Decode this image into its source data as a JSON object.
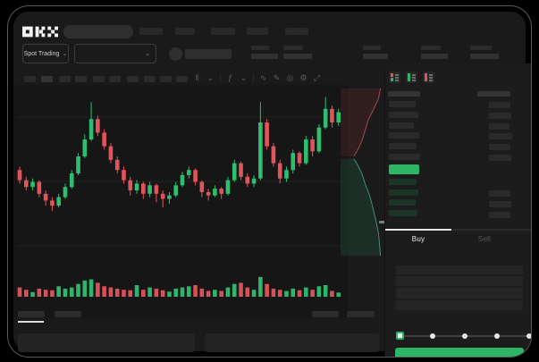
{
  "window": {
    "title": "OKX spot trading"
  },
  "colors": {
    "accent_green": "#2DB464",
    "candle_up": "#2FBD70",
    "candle_down": "#E0555C",
    "depth_ask_line": "#9c4a50",
    "depth_ask_fill": "rgba(176,62,68,0.16)",
    "depth_bid_line": "#3f8e7b",
    "depth_bid_fill": "rgba(46,140,96,0.18)",
    "grid_line": "#222222",
    "bid_row_tint": "#1d3527"
  },
  "topbar": {
    "logo": "OKX",
    "nav_placeholder_count": 5
  },
  "market_bar": {
    "market_selector": {
      "label": "Spot Trading",
      "chevron": "⌄"
    },
    "pair_selector": {
      "chevron": "⌄"
    },
    "stat_placeholder_count": 5
  },
  "chart_toolbar": {
    "interval_placeholder_count": 10,
    "icons": [
      {
        "name": "candle-type-icon",
        "glyph": "‖"
      },
      {
        "name": "chevron-down-icon",
        "glyph": "⌄"
      },
      {
        "name": "divider",
        "glyph": "|"
      },
      {
        "name": "indicators-icon",
        "glyph": "ƒ"
      },
      {
        "name": "chevron-down-icon",
        "glyph": "⌄"
      },
      {
        "name": "divider",
        "glyph": "|"
      },
      {
        "name": "line-tool-icon",
        "glyph": "∿"
      },
      {
        "name": "draw-tool-icon",
        "glyph": "✎"
      },
      {
        "name": "screenshot-icon",
        "glyph": "◎"
      },
      {
        "name": "settings-icon",
        "glyph": "⚙"
      },
      {
        "name": "fullscreen-icon",
        "glyph": "⤢"
      }
    ]
  },
  "chart_data": {
    "type": "candlestick",
    "title": "",
    "xlabel": "",
    "ylabel": "",
    "ylim": [
      0,
      100
    ],
    "axis_labels_visible": false,
    "candles_ohlc": [
      [
        52,
        54,
        44,
        46
      ],
      [
        46,
        48,
        40,
        42
      ],
      [
        42,
        47,
        40,
        45
      ],
      [
        45,
        46,
        36,
        38
      ],
      [
        38,
        40,
        31,
        34
      ],
      [
        34,
        36,
        28,
        31
      ],
      [
        31,
        38,
        30,
        36
      ],
      [
        36,
        44,
        35,
        42
      ],
      [
        42,
        52,
        41,
        50
      ],
      [
        50,
        62,
        49,
        60
      ],
      [
        60,
        73,
        59,
        70
      ],
      [
        70,
        92,
        69,
        82
      ],
      [
        82,
        84,
        72,
        74
      ],
      [
        74,
        76,
        64,
        66
      ],
      [
        66,
        68,
        56,
        58
      ],
      [
        58,
        60,
        50,
        52
      ],
      [
        52,
        54,
        44,
        46
      ],
      [
        46,
        48,
        37,
        40
      ],
      [
        40,
        46,
        38,
        44
      ],
      [
        44,
        45,
        35,
        38
      ],
      [
        38,
        45,
        36,
        43
      ],
      [
        43,
        44,
        33,
        38
      ],
      [
        38,
        40,
        30,
        35
      ],
      [
        35,
        39,
        32,
        37
      ],
      [
        37,
        45,
        36,
        43
      ],
      [
        43,
        51,
        42,
        49
      ],
      [
        49,
        54,
        47,
        52
      ],
      [
        52,
        53,
        43,
        45
      ],
      [
        45,
        46,
        36,
        39
      ],
      [
        39,
        41,
        34,
        37
      ],
      [
        37,
        43,
        36,
        41
      ],
      [
        41,
        42,
        35,
        38
      ],
      [
        38,
        48,
        37,
        46
      ],
      [
        46,
        58,
        45,
        56
      ],
      [
        56,
        57,
        46,
        48
      ],
      [
        48,
        50,
        42,
        44
      ],
      [
        44,
        49,
        42,
        47
      ],
      [
        47,
        92,
        46,
        80
      ],
      [
        80,
        82,
        64,
        66
      ],
      [
        66,
        68,
        54,
        56
      ],
      [
        56,
        58,
        44,
        47
      ],
      [
        47,
        54,
        45,
        52
      ],
      [
        52,
        64,
        50,
        62
      ],
      [
        62,
        63,
        54,
        56
      ],
      [
        56,
        72,
        55,
        70
      ],
      [
        70,
        72,
        60,
        63
      ],
      [
        63,
        79,
        62,
        77
      ],
      [
        77,
        95,
        76,
        88
      ],
      [
        88,
        90,
        77,
        80
      ],
      [
        80,
        88,
        78,
        86
      ]
    ],
    "volume": [
      40,
      30,
      20,
      35,
      30,
      28,
      45,
      35,
      40,
      55,
      70,
      75,
      60,
      45,
      40,
      35,
      30,
      28,
      50,
      30,
      40,
      35,
      28,
      22,
      35,
      40,
      45,
      50,
      35,
      25,
      30,
      25,
      40,
      55,
      60,
      40,
      30,
      85,
      55,
      35,
      30,
      25,
      35,
      28,
      40,
      30,
      45,
      50,
      25,
      18
    ],
    "depth": {
      "asks": [
        [
          0.02,
          0.95
        ],
        [
          0.08,
          0.9
        ],
        [
          0.14,
          0.78
        ],
        [
          0.2,
          0.66
        ],
        [
          0.26,
          0.58
        ],
        [
          0.31,
          0.52
        ],
        [
          0.35,
          0.45
        ],
        [
          0.38,
          0.38
        ],
        [
          0.405,
          0.32
        ]
      ],
      "bids": [
        [
          0.42,
          0.32
        ],
        [
          0.46,
          0.42
        ],
        [
          0.51,
          0.52
        ],
        [
          0.56,
          0.58
        ],
        [
          0.62,
          0.68
        ],
        [
          0.68,
          0.75
        ],
        [
          0.73,
          0.8
        ],
        [
          0.79,
          0.86
        ],
        [
          0.84,
          0.9
        ],
        [
          0.91,
          0.93
        ],
        [
          0.97,
          0.95
        ]
      ]
    }
  },
  "orderbook": {
    "view_toggles": [
      {
        "name": "book-combined-icon"
      },
      {
        "name": "book-bids-icon"
      },
      {
        "name": "book-asks-icon"
      }
    ],
    "ask_row_count": 6,
    "bid_row_count": 4,
    "last_price_highlighted": true
  },
  "trade_panel": {
    "tabs": [
      {
        "label": "Buy",
        "active": true
      },
      {
        "label": "Sell",
        "active": false
      }
    ],
    "field_placeholder_count": 4,
    "amount_slider": {
      "stops": 5,
      "selected_index": 0
    },
    "submit_button": {
      "label": ""
    }
  },
  "bottom_bar": {
    "tab_placeholder_count": 2,
    "right_placeholder_count": 2,
    "panel_placeholder_count": 2
  }
}
